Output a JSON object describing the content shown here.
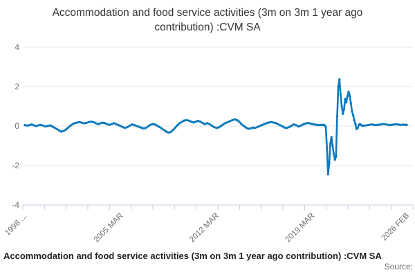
{
  "title": "Accommodation and food service activities (3m on 3m 1 year ago contribution) :CVM SA",
  "legend_label": "Accommodation and food service activities (3m on 3m 1 year ago contribution) :CVM SA",
  "source_label": "Source:",
  "chart_data": {
    "type": "line",
    "title": "Accommodation and food service activities (3m on 3m 1 year ago contribution) :CVM SA",
    "xlabel": "",
    "ylabel": "",
    "ylim": [
      -4,
      4
    ],
    "grid": true,
    "legend_position": "bottom-left",
    "line_color": "#0f7abd",
    "grid_color": "#e6e6e6",
    "axis_color": "#c4cde1",
    "label_color": "#6e6e6e",
    "months_total": 335,
    "x_unit": "months since 1998 MAR",
    "yticks": [
      4,
      2,
      0,
      -2,
      -4
    ],
    "xticks": [
      {
        "m": 0,
        "label": "1998 …"
      },
      {
        "m": 84,
        "label": "2005 MAR"
      },
      {
        "m": 168,
        "label": "2012 MAR"
      },
      {
        "m": 252,
        "label": "2019 MAR"
      },
      {
        "m": 335,
        "label": "2026 FEB"
      }
    ],
    "series": [
      {
        "name": "Accommodation and food service activities (3m on 3m 1 year ago contribution) :CVM SA",
        "color": "#0f7abd",
        "points": [
          [
            0,
            0.05
          ],
          [
            2,
            0.02
          ],
          [
            4,
            0.05
          ],
          [
            6,
            0.08
          ],
          [
            8,
            0.03
          ],
          [
            10,
            0
          ],
          [
            12,
            0.04
          ],
          [
            14,
            0.06
          ],
          [
            16,
            0.02
          ],
          [
            18,
            -0.02
          ],
          [
            20,
            0
          ],
          [
            22,
            0.03
          ],
          [
            24,
            -0.02
          ],
          [
            26,
            -0.08
          ],
          [
            28,
            -0.15
          ],
          [
            30,
            -0.22
          ],
          [
            32,
            -0.28
          ],
          [
            34,
            -0.25
          ],
          [
            36,
            -0.18
          ],
          [
            38,
            -0.08
          ],
          [
            40,
            0.02
          ],
          [
            42,
            0.1
          ],
          [
            44,
            0.15
          ],
          [
            46,
            0.18
          ],
          [
            48,
            0.2
          ],
          [
            50,
            0.17
          ],
          [
            52,
            0.14
          ],
          [
            54,
            0.16
          ],
          [
            56,
            0.2
          ],
          [
            58,
            0.22
          ],
          [
            60,
            0.2
          ],
          [
            62,
            0.15
          ],
          [
            64,
            0.1
          ],
          [
            66,
            0.13
          ],
          [
            68,
            0.17
          ],
          [
            70,
            0.15
          ],
          [
            72,
            0.1
          ],
          [
            74,
            0.06
          ],
          [
            76,
            0.1
          ],
          [
            78,
            0.14
          ],
          [
            80,
            0.1
          ],
          [
            82,
            0.05
          ],
          [
            84,
            0
          ],
          [
            86,
            -0.06
          ],
          [
            88,
            -0.1
          ],
          [
            90,
            -0.05
          ],
          [
            92,
            0.02
          ],
          [
            94,
            0.08
          ],
          [
            96,
            0.05
          ],
          [
            98,
            0
          ],
          [
            100,
            -0.04
          ],
          [
            102,
            -0.08
          ],
          [
            104,
            -0.12
          ],
          [
            106,
            -0.1
          ],
          [
            108,
            -0.02
          ],
          [
            110,
            0.06
          ],
          [
            112,
            0.1
          ],
          [
            114,
            0.08
          ],
          [
            116,
            0.02
          ],
          [
            118,
            -0.05
          ],
          [
            120,
            -0.12
          ],
          [
            122,
            -0.2
          ],
          [
            124,
            -0.28
          ],
          [
            126,
            -0.33
          ],
          [
            128,
            -0.3
          ],
          [
            130,
            -0.2
          ],
          [
            132,
            -0.08
          ],
          [
            134,
            0.05
          ],
          [
            136,
            0.15
          ],
          [
            138,
            0.22
          ],
          [
            140,
            0.28
          ],
          [
            142,
            0.3
          ],
          [
            144,
            0.27
          ],
          [
            146,
            0.22
          ],
          [
            148,
            0.18
          ],
          [
            150,
            0.22
          ],
          [
            152,
            0.26
          ],
          [
            154,
            0.22
          ],
          [
            156,
            0.15
          ],
          [
            158,
            0.1
          ],
          [
            160,
            0.14
          ],
          [
            162,
            0.1
          ],
          [
            164,
            0.02
          ],
          [
            166,
            -0.05
          ],
          [
            168,
            -0.1
          ],
          [
            170,
            -0.07
          ],
          [
            172,
            0
          ],
          [
            174,
            0.08
          ],
          [
            176,
            0.15
          ],
          [
            178,
            0.2
          ],
          [
            180,
            0.25
          ],
          [
            182,
            0.3
          ],
          [
            184,
            0.34
          ],
          [
            186,
            0.3
          ],
          [
            188,
            0.22
          ],
          [
            190,
            0.1
          ],
          [
            192,
            0
          ],
          [
            194,
            -0.08
          ],
          [
            196,
            -0.14
          ],
          [
            198,
            -0.12
          ],
          [
            200,
            -0.08
          ],
          [
            202,
            -0.1
          ],
          [
            204,
            -0.05
          ],
          [
            206,
            0
          ],
          [
            208,
            0.05
          ],
          [
            210,
            0.1
          ],
          [
            212,
            0.14
          ],
          [
            214,
            0.18
          ],
          [
            216,
            0.2
          ],
          [
            218,
            0.18
          ],
          [
            220,
            0.15
          ],
          [
            222,
            0.1
          ],
          [
            224,
            0.04
          ],
          [
            226,
            -0.02
          ],
          [
            228,
            -0.08
          ],
          [
            230,
            -0.1
          ],
          [
            232,
            -0.05
          ],
          [
            234,
            0.02
          ],
          [
            236,
            0.08
          ],
          [
            238,
            0.04
          ],
          [
            240,
            -0.02
          ],
          [
            242,
            0.02
          ],
          [
            244,
            0.08
          ],
          [
            246,
            0.12
          ],
          [
            248,
            0.15
          ],
          [
            250,
            0.14
          ],
          [
            252,
            0.1
          ],
          [
            254,
            0.08
          ],
          [
            256,
            0.06
          ],
          [
            258,
            0.05
          ],
          [
            260,
            0.06
          ],
          [
            261,
            0.05
          ],
          [
            262,
            0.06
          ],
          [
            263,
            0.04
          ],
          [
            264,
            -0.05
          ],
          [
            265,
            -1.1
          ],
          [
            266,
            -2.45
          ],
          [
            267,
            -1.9
          ],
          [
            268,
            -0.9
          ],
          [
            269,
            -0.56
          ],
          [
            270,
            -1.0
          ],
          [
            271,
            -1.4
          ],
          [
            272,
            -1.7
          ],
          [
            273,
            -1.55
          ],
          [
            274,
            0.5
          ],
          [
            275,
            2.0
          ],
          [
            276,
            2.36
          ],
          [
            277,
            1.6
          ],
          [
            278,
            1.0
          ],
          [
            279,
            0.62
          ],
          [
            280,
            0.85
          ],
          [
            281,
            1.37
          ],
          [
            282,
            1.2
          ],
          [
            283,
            1.5
          ],
          [
            284,
            1.74
          ],
          [
            285,
            1.55
          ],
          [
            286,
            1.15
          ],
          [
            287,
            0.75
          ],
          [
            288,
            0.55
          ],
          [
            289,
            0.3
          ],
          [
            290,
            0.1
          ],
          [
            291,
            -0.15
          ],
          [
            292,
            -0.1
          ],
          [
            293,
            0.05
          ],
          [
            294,
            0.1
          ],
          [
            295,
            0.05
          ],
          [
            296,
            0.02
          ],
          [
            297,
            0.02
          ],
          [
            298,
            0.02
          ],
          [
            300,
            0.04
          ],
          [
            302,
            0.06
          ],
          [
            304,
            0.08
          ],
          [
            306,
            0.06
          ],
          [
            308,
            0.05
          ],
          [
            310,
            0.06
          ],
          [
            312,
            0.08
          ],
          [
            314,
            0.1
          ],
          [
            316,
            0.09
          ],
          [
            318,
            0.07
          ],
          [
            320,
            0.05
          ],
          [
            322,
            0.06
          ],
          [
            324,
            0.08
          ],
          [
            326,
            0.09
          ],
          [
            328,
            0.07
          ],
          [
            330,
            0.06
          ],
          [
            332,
            0.07
          ],
          [
            334,
            0.06
          ],
          [
            335,
            0.06
          ]
        ]
      }
    ]
  }
}
